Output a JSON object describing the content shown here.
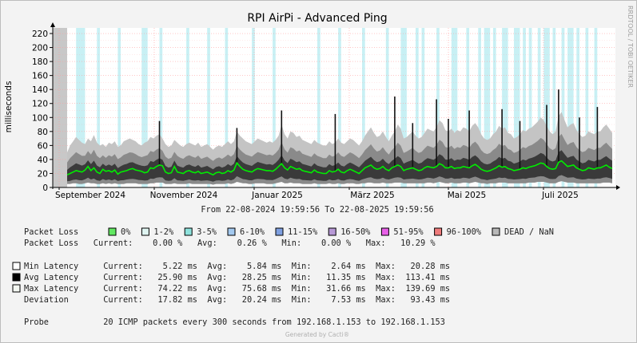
{
  "chart_data": {
    "type": "area",
    "title": "RPI AirPi - Advanced Ping",
    "ylabel": "milliseconds",
    "ylim": [
      0,
      228
    ],
    "y_ticks": [
      0,
      20,
      40,
      60,
      80,
      100,
      120,
      140,
      160,
      180,
      200,
      220
    ],
    "x_ticks": [
      "September 2024",
      "November 2024",
      "Januar 2025",
      "März 2025",
      "Mai 2025",
      "Juli 2025"
    ],
    "range_text": "From 22-08-2024 19:59:56 To 22-08-2025 19:59:56",
    "side_text": "RRDTOOL / TOBI OETIKER",
    "footer": "Generated by Cacti®",
    "colors": {
      "avg_line": "#00ee00",
      "dead": "#c8c8c8",
      "loss_bands": "#c8f0f4",
      "grid": "#ff9a9a",
      "band_outer": "#c4c4c4",
      "band_mid": "#8a8a8a",
      "band_inner": "#3a3a3a"
    },
    "series": [
      {
        "name": "Avg Latency",
        "values": [
          18,
          20,
          22,
          24,
          23,
          22,
          25,
          30,
          24,
          28,
          22,
          20,
          26,
          23,
          24,
          22,
          25,
          19,
          22,
          23,
          24,
          26,
          27,
          25,
          24,
          23,
          21,
          22,
          28,
          27,
          30,
          32,
          31,
          22,
          20,
          21,
          30,
          22,
          21,
          20,
          23,
          24,
          22,
          21,
          23,
          20,
          21,
          22,
          20,
          18,
          21,
          22,
          20,
          21,
          24,
          22,
          25,
          35,
          30,
          26,
          24,
          23,
          22,
          25,
          27,
          26,
          25,
          24,
          24,
          23,
          26,
          30,
          34,
          28,
          25,
          30,
          28,
          26,
          27,
          24,
          23,
          22,
          21,
          25,
          22,
          21,
          20,
          20,
          24,
          22,
          23,
          26,
          22,
          21,
          24,
          26,
          24,
          22,
          20,
          24,
          28,
          30,
          32,
          28,
          26,
          27,
          30,
          26,
          24,
          28,
          30,
          32,
          30,
          24,
          26,
          27,
          28,
          26,
          24,
          25,
          28,
          30,
          29,
          28,
          30,
          34,
          32,
          28,
          28,
          30,
          27,
          28,
          28,
          30,
          29,
          28,
          31,
          33,
          30,
          26,
          24,
          23,
          24,
          26,
          28,
          31,
          29,
          30,
          27,
          26,
          24,
          25,
          26,
          28,
          27,
          29,
          30,
          31,
          33,
          35,
          34,
          30,
          27,
          26,
          27,
          36,
          38,
          34,
          30,
          31,
          32,
          28,
          26,
          24,
          25,
          28,
          27,
          26,
          28,
          28,
          30,
          32,
          29,
          27
        ]
      },
      {
        "name": "Max Latency",
        "values": [
          50,
          60,
          66,
          72,
          68,
          64,
          62,
          70,
          66,
          75,
          64,
          60,
          62,
          58,
          64,
          62,
          66,
          58,
          60,
          66,
          68,
          70,
          68,
          66,
          62,
          60,
          64,
          66,
          72,
          70,
          74,
          76,
          70,
          62,
          58,
          60,
          68,
          64,
          60,
          58,
          62,
          64,
          62,
          60,
          64,
          58,
          60,
          62,
          58,
          54,
          58,
          60,
          58,
          62,
          66,
          62,
          66,
          80,
          74,
          70,
          66,
          64,
          62,
          66,
          70,
          68,
          66,
          64,
          66,
          64,
          68,
          74,
          90,
          76,
          70,
          80,
          78,
          72,
          74,
          68,
          66,
          64,
          62,
          68,
          64,
          62,
          60,
          60,
          66,
          62,
          64,
          70,
          64,
          62,
          66,
          70,
          68,
          64,
          60,
          66,
          74,
          80,
          86,
          78,
          72,
          74,
          80,
          72,
          66,
          74,
          80,
          90,
          84,
          70,
          72,
          76,
          80,
          74,
          70,
          72,
          78,
          84,
          82,
          80,
          86,
          96,
          92,
          82,
          80,
          84,
          78,
          82,
          80,
          86,
          84,
          80,
          88,
          92,
          86,
          76,
          70,
          68,
          70,
          76,
          80,
          88,
          84,
          86,
          78,
          76,
          70,
          72,
          76,
          82,
          80,
          84,
          86,
          90,
          94,
          100,
          96,
          88,
          80,
          76,
          80,
          102,
          108,
          96,
          86,
          90,
          92,
          82,
          76,
          72,
          74,
          80,
          78,
          76,
          80,
          80,
          86,
          90,
          84,
          78
        ]
      },
      {
        "name": "Min Latency",
        "values": [
          5,
          5,
          6,
          6,
          5,
          5,
          6,
          7,
          6,
          6,
          5,
          5,
          6,
          5,
          6,
          5,
          6,
          5,
          5,
          5,
          6,
          6,
          6,
          6,
          5,
          5,
          5,
          5,
          6,
          6,
          7,
          7,
          7,
          5,
          5,
          5,
          6,
          5,
          5,
          5,
          5,
          6,
          5,
          5,
          5,
          5,
          5,
          5,
          5,
          4,
          5,
          5,
          5,
          5,
          6,
          5,
          6,
          8,
          7,
          6,
          6,
          5,
          5,
          6,
          6,
          6,
          6,
          5,
          5,
          5,
          6,
          7,
          8,
          6,
          6,
          7,
          6,
          6,
          6,
          5,
          5,
          5,
          5,
          6,
          5,
          5,
          5,
          5,
          6,
          5,
          5,
          6,
          5,
          5,
          6,
          6,
          6,
          5,
          5,
          6,
          6,
          7,
          7,
          6,
          6,
          6,
          7,
          6,
          6,
          6,
          7,
          7,
          7,
          6,
          6,
          6,
          6,
          6,
          6,
          6,
          6,
          7,
          7,
          6,
          7,
          8,
          7,
          6,
          6,
          7,
          6,
          6,
          6,
          7,
          7,
          6,
          7,
          8,
          7,
          6,
          6,
          5,
          6,
          6,
          6,
          7,
          7,
          7,
          6,
          6,
          6,
          6,
          6,
          6,
          6,
          7,
          7,
          7,
          8,
          8,
          8,
          7,
          6,
          6,
          6,
          8,
          9,
          8,
          7,
          7,
          7,
          6,
          6,
          6,
          6,
          6,
          6,
          6,
          6,
          6,
          7,
          7,
          7,
          6
        ]
      }
    ],
    "spikes": [
      {
        "i": 31,
        "v": 95
      },
      {
        "i": 57,
        "v": 85
      },
      {
        "i": 72,
        "v": 110
      },
      {
        "i": 90,
        "v": 105
      },
      {
        "i": 110,
        "v": 130
      },
      {
        "i": 116,
        "v": 92
      },
      {
        "i": 124,
        "v": 126
      },
      {
        "i": 128,
        "v": 98
      },
      {
        "i": 135,
        "v": 110
      },
      {
        "i": 146,
        "v": 112
      },
      {
        "i": 152,
        "v": 95
      },
      {
        "i": 161,
        "v": 118
      },
      {
        "i": 165,
        "v": 140
      },
      {
        "i": 172,
        "v": 100
      },
      {
        "i": 178,
        "v": 115
      }
    ],
    "loss_band_ranges": [
      [
        3,
        6
      ],
      [
        10,
        11
      ],
      [
        17,
        18
      ],
      [
        25,
        27
      ],
      [
        31,
        32
      ],
      [
        40,
        41
      ],
      [
        47,
        48
      ],
      [
        53,
        54
      ],
      [
        62,
        63
      ],
      [
        69,
        70
      ],
      [
        84,
        85
      ],
      [
        91,
        92
      ],
      [
        99,
        100
      ],
      [
        107,
        108
      ],
      [
        112,
        114
      ],
      [
        117,
        118
      ],
      [
        119,
        120
      ],
      [
        124,
        125
      ],
      [
        129,
        131
      ],
      [
        134,
        135
      ],
      [
        138,
        139
      ],
      [
        140,
        142
      ],
      [
        143,
        144
      ],
      [
        146,
        148
      ],
      [
        150,
        152
      ],
      [
        153,
        154
      ],
      [
        155,
        156
      ],
      [
        158,
        159
      ],
      [
        160,
        162
      ],
      [
        163,
        164
      ],
      [
        166,
        167
      ],
      [
        168,
        170
      ],
      [
        171,
        172
      ],
      [
        174,
        175
      ],
      [
        177,
        178
      ]
    ]
  },
  "legend": {
    "packet_loss_label": "Packet Loss",
    "loss_swatches": [
      {
        "label": "0%",
        "color": "#62e862"
      },
      {
        "label": "1-2%",
        "color": "#dff4f1"
      },
      {
        "label": "3-5%",
        "color": "#8ee2dc"
      },
      {
        "label": "6-10%",
        "color": "#a3c9ef"
      },
      {
        "label": "11-15%",
        "color": "#7e9fe0"
      },
      {
        "label": "16-50%",
        "color": "#b799d6"
      },
      {
        "label": "51-95%",
        "color": "#e860e8"
      },
      {
        "label": "96-100%",
        "color": "#ef7b7b"
      },
      {
        "label": "DEAD / NaN",
        "color": "#b8b8b8"
      }
    ],
    "loss_stats_line": "Packet Loss   Current:    0.00 %   Avg:    0.26 %   Min:    0.00 %   Max:   10.29 %",
    "latency_rows": [
      {
        "text": "Min Latency     Current:    5.22 ms  Avg:    5.84 ms  Min:    2.64 ms  Max:   20.28 ms",
        "color": "#ffffff"
      },
      {
        "text": "Avg Latency     Current:   25.90 ms  Avg:   28.25 ms  Min:   11.35 ms  Max:  113.41 ms",
        "color": "#000000"
      },
      {
        "text": "Max Latency     Current:   74.22 ms  Avg:   75.68 ms  Min:   31.66 ms  Max:  139.69 ms",
        "color": "#f4f8f2"
      },
      {
        "text": "Deviation       Current:   17.82 ms  Avg:   20.24 ms  Min:    7.53 ms  Max:   93.43 ms",
        "color": ""
      }
    ],
    "probe_line": "Probe           20 ICMP packets every 300 seconds from 192.168.1.153 to 192.168.1.153"
  }
}
